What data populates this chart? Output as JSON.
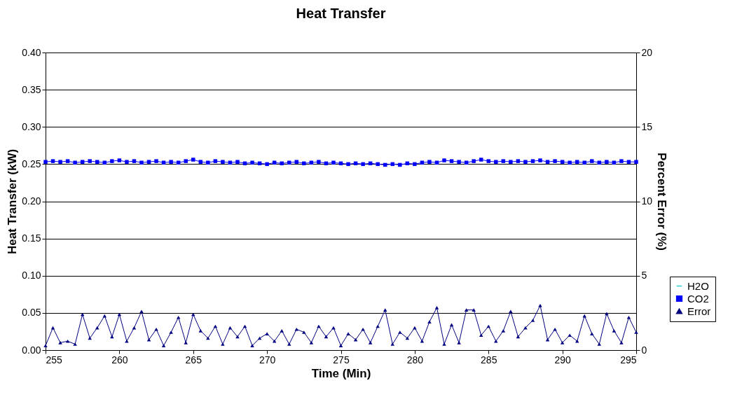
{
  "chart_data": {
    "type": "line",
    "title": "Heat Transfer",
    "xlabel": "Time (Min)",
    "ylabel": "Heat Transfer (kW)",
    "y2label": "Percent Error (%)",
    "x": [
      255,
      255.5,
      256,
      256.5,
      257,
      257.5,
      258,
      258.5,
      259,
      259.5,
      260,
      260.5,
      261,
      261.5,
      262,
      262.5,
      263,
      263.5,
      264,
      264.5,
      265,
      265.5,
      266,
      266.5,
      267,
      267.5,
      268,
      268.5,
      269,
      269.5,
      270,
      270.5,
      271,
      271.5,
      272,
      272.5,
      273,
      273.5,
      274,
      274.5,
      275,
      275.5,
      276,
      276.5,
      277,
      277.5,
      278,
      278.5,
      279,
      279.5,
      280,
      280.5,
      281,
      281.5,
      282,
      282.5,
      283,
      283.5,
      284,
      284.5,
      285,
      285.5,
      286,
      286.5,
      287,
      287.5,
      288,
      288.5,
      289,
      289.5,
      290,
      290.5,
      291,
      291.5,
      292,
      292.5,
      293,
      293.5,
      294,
      294.5,
      295
    ],
    "series": [
      {
        "name": "H2O",
        "color": "#33cccc",
        "marker": "none",
        "values": [
          null,
          null,
          null,
          null,
          null,
          null,
          null,
          null,
          null,
          null,
          null,
          null,
          null,
          null,
          null,
          null,
          null,
          null,
          null,
          null,
          null,
          null,
          null,
          null,
          null,
          null,
          null,
          null,
          null,
          null,
          null,
          null,
          null,
          null,
          null,
          null,
          null,
          null,
          null,
          null,
          null,
          null,
          null,
          null,
          null,
          null,
          null,
          null,
          null,
          null,
          null,
          null,
          null,
          null,
          null,
          null,
          null,
          null,
          null,
          null,
          null,
          null,
          null,
          null,
          null,
          null,
          null,
          null,
          null,
          null,
          null,
          null,
          null,
          null,
          null,
          null,
          null,
          null,
          null,
          null,
          null
        ]
      },
      {
        "name": "CO2",
        "color": "#0000ff",
        "marker": "square",
        "values": [
          0.253,
          0.254,
          0.253,
          0.254,
          0.252,
          0.253,
          0.254,
          0.253,
          0.252,
          0.254,
          0.255,
          0.253,
          0.254,
          0.252,
          0.253,
          0.254,
          0.252,
          0.253,
          0.252,
          0.254,
          0.256,
          0.253,
          0.252,
          0.254,
          0.253,
          0.252,
          0.253,
          0.251,
          0.252,
          0.251,
          0.25,
          0.252,
          0.251,
          0.252,
          0.253,
          0.251,
          0.252,
          0.253,
          0.251,
          0.252,
          0.251,
          0.25,
          0.251,
          0.25,
          0.251,
          0.25,
          0.249,
          0.25,
          0.249,
          0.251,
          0.25,
          0.252,
          0.253,
          0.252,
          0.255,
          0.254,
          0.253,
          0.252,
          0.254,
          0.256,
          0.254,
          0.253,
          0.254,
          0.253,
          0.254,
          0.253,
          0.254,
          0.255,
          0.253,
          0.254,
          0.253,
          0.252,
          0.253,
          0.252,
          0.254,
          0.252,
          0.253,
          0.252,
          0.254,
          0.253,
          0.253
        ]
      },
      {
        "name": "Error",
        "color": "#000080",
        "marker": "triangle",
        "axis": "y2",
        "values": [
          0.3,
          1.5,
          0.5,
          0.6,
          0.4,
          2.4,
          0.8,
          1.5,
          2.3,
          0.9,
          2.4,
          0.6,
          1.5,
          2.6,
          0.7,
          1.4,
          0.3,
          1.2,
          2.2,
          0.5,
          2.4,
          1.3,
          0.8,
          1.6,
          0.4,
          1.5,
          0.9,
          1.6,
          0.3,
          0.8,
          1.1,
          0.6,
          1.3,
          0.4,
          1.4,
          1.2,
          0.5,
          1.6,
          0.9,
          1.5,
          0.3,
          1.1,
          0.7,
          1.4,
          0.5,
          1.6,
          2.7,
          0.4,
          1.2,
          0.8,
          1.5,
          0.6,
          1.9,
          2.85,
          0.4,
          1.7,
          0.5,
          2.7,
          2.7,
          1.0,
          1.6,
          0.6,
          1.3,
          2.6,
          0.9,
          1.5,
          2.0,
          3.0,
          0.7,
          1.4,
          0.5,
          1.0,
          0.6,
          2.3,
          1.1,
          0.4,
          2.45,
          1.3,
          0.5,
          2.2,
          1.2
        ]
      }
    ],
    "xlim": [
      255,
      295
    ],
    "xticks": [
      255,
      260,
      265,
      270,
      275,
      280,
      285,
      290,
      295
    ],
    "ylim": [
      0,
      0.4
    ],
    "yticks": [
      {
        "value": 0,
        "label": "0.00"
      },
      {
        "value": 0.05,
        "label": "0.05"
      },
      {
        "value": 0.1,
        "label": "0.10"
      },
      {
        "value": 0.15,
        "label": "0.15"
      },
      {
        "value": 0.2,
        "label": "0.20"
      },
      {
        "value": 0.25,
        "label": "0.25"
      },
      {
        "value": 0.3,
        "label": "0.30"
      },
      {
        "value": 0.35,
        "label": "0.35"
      },
      {
        "value": 0.4,
        "label": "0.40"
      }
    ],
    "y2lim": [
      0,
      20
    ],
    "y2ticks": [
      0,
      5,
      10,
      15,
      20
    ],
    "grid": "y",
    "legend": "right",
    "line_style": "solid"
  }
}
